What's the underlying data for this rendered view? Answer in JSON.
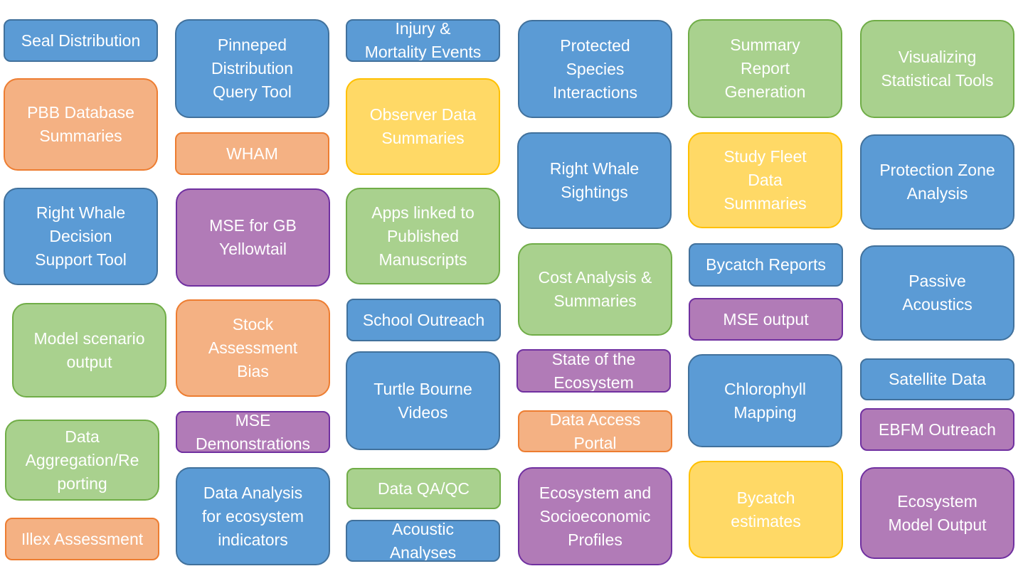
{
  "tiles": {
    "seal_distribution": "Seal Distribution",
    "pbb_database_summaries": "PBB Database\nSummaries",
    "right_whale_decision_support_tool": "Right Whale\nDecision\nSupport Tool",
    "model_scenario_output": "Model scenario\noutput",
    "data_aggregation_reporting": "Data\nAggregation/Re\nporting",
    "illex_assessment": "Illex Assessment",
    "pinneped_distribution_query_tool": "Pinneped\nDistribution\nQuery Tool",
    "wham": "WHAM",
    "mse_for_gb_yellowtail": "MSE for GB\nYellowtail",
    "stock_assessment_bias": "Stock\nAssessment\nBias",
    "mse_demonstrations": "MSE\nDemonstrations",
    "data_analysis_ecosystem_indicators": "Data Analysis\nfor ecosystem\nindicators",
    "injury_mortality_events": "Injury &\nMortality Events",
    "observer_data_summaries": "Observer Data\nSummaries",
    "apps_linked_to_published_manuscripts": "Apps linked to\nPublished\nManuscripts",
    "school_outreach": "School Outreach",
    "turtle_bourne_videos": "Turtle Bourne\nVideos",
    "data_qa_qc": "Data QA/QC",
    "acoustic_analyses": "Acoustic\nAnalyses",
    "protected_species_interactions": "Protected\nSpecies\nInteractions",
    "right_whale_sightings": "Right Whale\nSightings",
    "cost_analysis_summaries": "Cost Analysis &\nSummaries",
    "state_of_the_ecosystem": "State of the\nEcosystem",
    "data_access_portal": "Data Access\nPortal",
    "ecosystem_socioeconomic_profiles": "Ecosystem and\nSocioeconomic\nProfiles",
    "summary_report_generation": "Summary\nReport\nGeneration",
    "study_fleet_data_summaries": "Study Fleet\nData\nSummaries",
    "bycatch_reports": "Bycatch Reports",
    "mse_output": "MSE output",
    "chlorophyll_mapping": "Chlorophyll\nMapping",
    "bycatch_estimates": "Bycatch\nestimates",
    "visualizing_statistical_tools": "Visualizing\nStatistical Tools",
    "protection_zone_analysis": "Protection Zone\nAnalysis",
    "passive_acoustics": "Passive\nAcoustics",
    "satellite_data": "Satellite Data",
    "ebfm_outreach": "EBFM Outreach",
    "ecosystem_model_output": "Ecosystem\nModel Output"
  },
  "colors": {
    "blue": "#5b9bd5",
    "orange": "#f4b183",
    "green": "#a9d18e",
    "yellow": "#ffd966",
    "purple": "#b17bb7"
  }
}
